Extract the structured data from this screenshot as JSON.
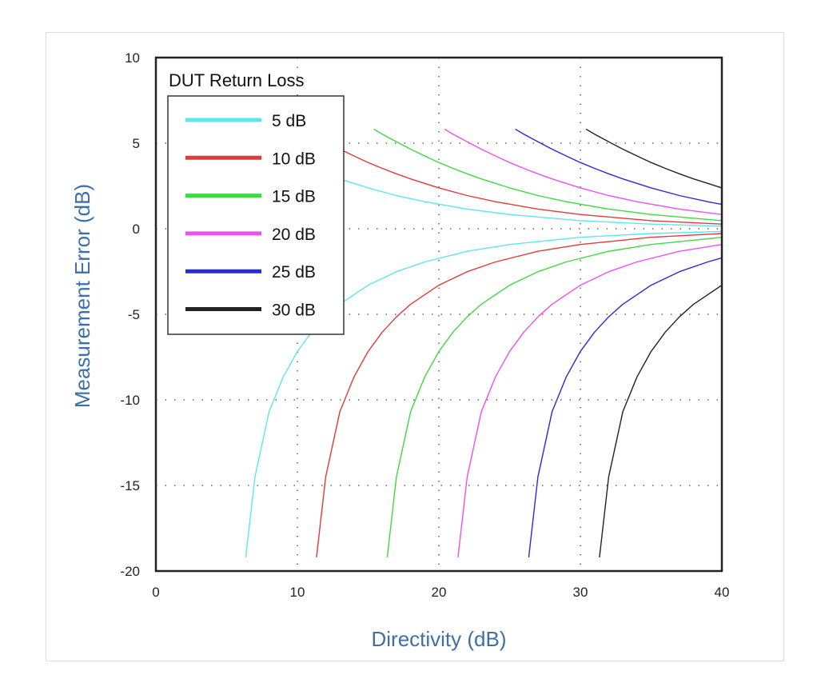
{
  "chart_data": {
    "type": "line",
    "xlabel": "Directivity (dB)",
    "ylabel": "Measurement Error (dB)",
    "xlim": [
      0,
      40
    ],
    "ylim": [
      -20,
      10
    ],
    "xticks": [
      0,
      10,
      20,
      30,
      40
    ],
    "yticks": [
      10,
      5,
      0,
      -5,
      -10,
      -15,
      -20
    ],
    "grid": "dotted",
    "legend": {
      "title": "DUT Return Loss",
      "placement": "top-left"
    },
    "series": [
      {
        "name": "5 dB",
        "color": "#5ee6ee",
        "upper": [
          [
            5.4,
            5.82
          ],
          [
            6,
            5.53
          ],
          [
            7,
            5.08
          ],
          [
            8,
            4.65
          ],
          [
            9,
            4.25
          ],
          [
            10,
            3.87
          ],
          [
            11,
            3.53
          ],
          [
            12,
            3.21
          ],
          [
            13,
            2.91
          ],
          [
            15,
            2.39
          ],
          [
            17,
            1.94
          ],
          [
            19,
            1.58
          ],
          [
            22,
            1.15
          ],
          [
            25,
            0.83
          ],
          [
            30,
            0.47
          ],
          [
            35,
            0.27
          ],
          [
            40,
            0.15
          ]
        ],
        "lower": [
          [
            6.35,
            -19.2
          ],
          [
            7,
            -14.5
          ],
          [
            8,
            -10.69
          ],
          [
            9,
            -8.66
          ],
          [
            10,
            -7.17
          ],
          [
            11,
            -6.04
          ],
          [
            12,
            -5.15
          ],
          [
            13,
            -4.41
          ],
          [
            15,
            -3.3
          ],
          [
            17,
            -2.51
          ],
          [
            19,
            -1.94
          ],
          [
            22,
            -1.32
          ],
          [
            25,
            -0.92
          ],
          [
            30,
            -0.5
          ],
          [
            35,
            -0.28
          ],
          [
            40,
            -0.16
          ]
        ]
      },
      {
        "name": "10 dB",
        "color": "#e03b3b",
        "upper": [
          [
            10.4,
            5.82
          ],
          [
            11,
            5.53
          ],
          [
            12,
            5.08
          ],
          [
            13,
            4.65
          ],
          [
            14,
            4.25
          ],
          [
            15,
            3.87
          ],
          [
            16,
            3.53
          ],
          [
            17,
            3.21
          ],
          [
            18,
            2.91
          ],
          [
            20,
            2.39
          ],
          [
            22,
            1.94
          ],
          [
            24,
            1.58
          ],
          [
            27,
            1.15
          ],
          [
            30,
            0.83
          ],
          [
            35,
            0.47
          ],
          [
            40,
            0.27
          ]
        ],
        "lower": [
          [
            11.35,
            -19.2
          ],
          [
            12,
            -14.5
          ],
          [
            13,
            -10.69
          ],
          [
            14,
            -8.66
          ],
          [
            15,
            -7.17
          ],
          [
            16,
            -6.04
          ],
          [
            17,
            -5.15
          ],
          [
            18,
            -4.41
          ],
          [
            20,
            -3.3
          ],
          [
            22,
            -2.51
          ],
          [
            24,
            -1.94
          ],
          [
            27,
            -1.32
          ],
          [
            30,
            -0.92
          ],
          [
            35,
            -0.5
          ],
          [
            40,
            -0.28
          ]
        ]
      },
      {
        "name": "15 dB",
        "color": "#3fd93f",
        "upper": [
          [
            15.4,
            5.82
          ],
          [
            16,
            5.53
          ],
          [
            17,
            5.08
          ],
          [
            18,
            4.65
          ],
          [
            19,
            4.25
          ],
          [
            20,
            3.87
          ],
          [
            21,
            3.53
          ],
          [
            22,
            3.21
          ],
          [
            23,
            2.91
          ],
          [
            25,
            2.39
          ],
          [
            27,
            1.94
          ],
          [
            29,
            1.58
          ],
          [
            32,
            1.15
          ],
          [
            35,
            0.83
          ],
          [
            40,
            0.47
          ]
        ],
        "lower": [
          [
            16.35,
            -19.2
          ],
          [
            17,
            -14.5
          ],
          [
            18,
            -10.69
          ],
          [
            19,
            -8.66
          ],
          [
            20,
            -7.17
          ],
          [
            21,
            -6.04
          ],
          [
            22,
            -5.15
          ],
          [
            23,
            -4.41
          ],
          [
            25,
            -3.3
          ],
          [
            27,
            -2.51
          ],
          [
            29,
            -1.94
          ],
          [
            32,
            -1.32
          ],
          [
            35,
            -0.92
          ],
          [
            40,
            -0.5
          ]
        ]
      },
      {
        "name": "20 dB",
        "color": "#f04ff0",
        "upper": [
          [
            20.4,
            5.82
          ],
          [
            21,
            5.53
          ],
          [
            22,
            5.08
          ],
          [
            23,
            4.65
          ],
          [
            24,
            4.25
          ],
          [
            25,
            3.87
          ],
          [
            26,
            3.53
          ],
          [
            27,
            3.21
          ],
          [
            28,
            2.91
          ],
          [
            30,
            2.39
          ],
          [
            32,
            1.94
          ],
          [
            34,
            1.58
          ],
          [
            37,
            1.15
          ],
          [
            40,
            0.83
          ]
        ],
        "lower": [
          [
            21.35,
            -19.2
          ],
          [
            22,
            -14.5
          ],
          [
            23,
            -10.69
          ],
          [
            24,
            -8.66
          ],
          [
            25,
            -7.17
          ],
          [
            26,
            -6.04
          ],
          [
            27,
            -5.15
          ],
          [
            28,
            -4.41
          ],
          [
            30,
            -3.3
          ],
          [
            32,
            -2.51
          ],
          [
            34,
            -1.94
          ],
          [
            37,
            -1.32
          ],
          [
            40,
            -0.92
          ]
        ]
      },
      {
        "name": "25 dB",
        "color": "#2a2ad6",
        "upper": [
          [
            25.4,
            5.82
          ],
          [
            26,
            5.53
          ],
          [
            27,
            5.08
          ],
          [
            28,
            4.65
          ],
          [
            29,
            4.25
          ],
          [
            30,
            3.87
          ],
          [
            31,
            3.53
          ],
          [
            32,
            3.21
          ],
          [
            33,
            2.91
          ],
          [
            35,
            2.39
          ],
          [
            37,
            1.94
          ],
          [
            39,
            1.58
          ],
          [
            40,
            1.42
          ]
        ],
        "lower": [
          [
            26.35,
            -19.2
          ],
          [
            27,
            -14.5
          ],
          [
            28,
            -10.69
          ],
          [
            29,
            -8.66
          ],
          [
            30,
            -7.17
          ],
          [
            31,
            -6.04
          ],
          [
            32,
            -5.15
          ],
          [
            33,
            -4.41
          ],
          [
            35,
            -3.3
          ],
          [
            37,
            -2.51
          ],
          [
            39,
            -1.94
          ],
          [
            40,
            -1.7
          ]
        ]
      },
      {
        "name": "30 dB",
        "color": "#222222",
        "upper": [
          [
            30.4,
            5.82
          ],
          [
            31,
            5.53
          ],
          [
            32,
            5.08
          ],
          [
            33,
            4.65
          ],
          [
            34,
            4.25
          ],
          [
            35,
            3.87
          ],
          [
            36,
            3.53
          ],
          [
            37,
            3.21
          ],
          [
            38,
            2.91
          ],
          [
            40,
            2.39
          ]
        ],
        "lower": [
          [
            31.35,
            -19.2
          ],
          [
            32,
            -14.5
          ],
          [
            33,
            -10.69
          ],
          [
            34,
            -8.66
          ],
          [
            35,
            -7.17
          ],
          [
            36,
            -6.04
          ],
          [
            37,
            -5.15
          ],
          [
            38,
            -4.41
          ],
          [
            40,
            -3.3
          ]
        ]
      }
    ]
  }
}
